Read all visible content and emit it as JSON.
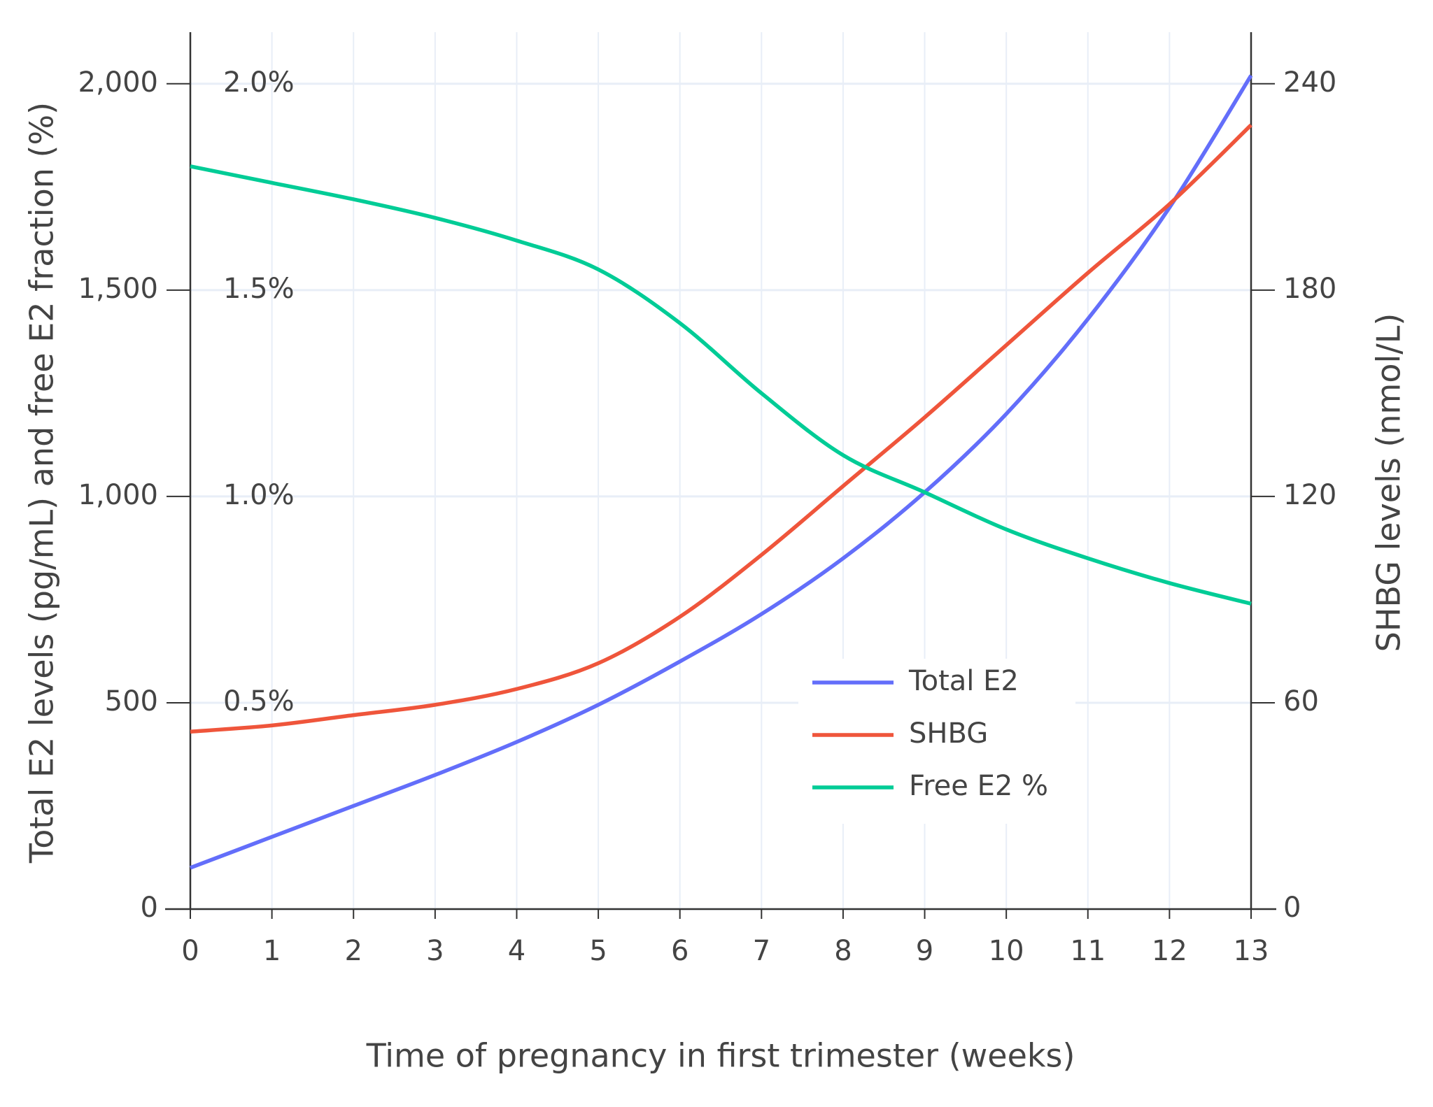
{
  "chart_data": {
    "type": "line",
    "x_label": "Time of pregnancy in first trimester (weeks)",
    "y_label": "Total E2 levels (pg/mL) and free E2 fraction (%)",
    "y2_label": "SHBG levels (nmol/L)",
    "x": [
      0,
      1,
      2,
      3,
      4,
      5,
      6,
      7,
      8,
      9,
      10,
      11,
      12,
      13
    ],
    "xlim": [
      0,
      13
    ],
    "xticks": [
      0,
      1,
      2,
      3,
      4,
      5,
      6,
      7,
      8,
      9,
      10,
      11,
      12,
      13
    ],
    "ylim": [
      0,
      2125
    ],
    "yticks": [
      0,
      500,
      {
        "value": 1000,
        "label": "1,000"
      },
      {
        "value": 1500,
        "label": "1,500"
      },
      {
        "value": 2000,
        "label": "2,000"
      }
    ],
    "y2lim": [
      0,
      255
    ],
    "y2ticks": [
      0,
      60,
      120,
      180,
      240
    ],
    "y3lim": [
      0,
      2.125
    ],
    "y3ticks": [
      {
        "value": 0.5,
        "label": "0.5%"
      },
      {
        "value": 1.0,
        "label": "1.0%"
      },
      {
        "value": 1.5,
        "label": "1.5%"
      },
      {
        "value": 2.0,
        "label": "2.0%"
      }
    ],
    "grid": true,
    "legend": "lower right",
    "series": [
      {
        "name": "Total E2",
        "color": "#636efa",
        "axis": "y",
        "values": [
          100,
          175,
          250,
          325,
          405,
          495,
          600,
          715,
          850,
          1010,
          1200,
          1430,
          1700,
          2020
        ]
      },
      {
        "name": "SHBG",
        "color": "#ef553b",
        "axis": "y2",
        "values": [
          51.6,
          53.4,
          56.4,
          59.4,
          64,
          71.5,
          85,
          103,
          123,
          143,
          164,
          185,
          205,
          228
        ]
      },
      {
        "name": "Free E2 %",
        "color": "#00cc96",
        "axis": "y3",
        "values": [
          1.8,
          1.76,
          1.72,
          1.675,
          1.62,
          1.55,
          1.42,
          1.25,
          1.1,
          1.01,
          0.92,
          0.85,
          0.79,
          0.74
        ]
      }
    ]
  }
}
